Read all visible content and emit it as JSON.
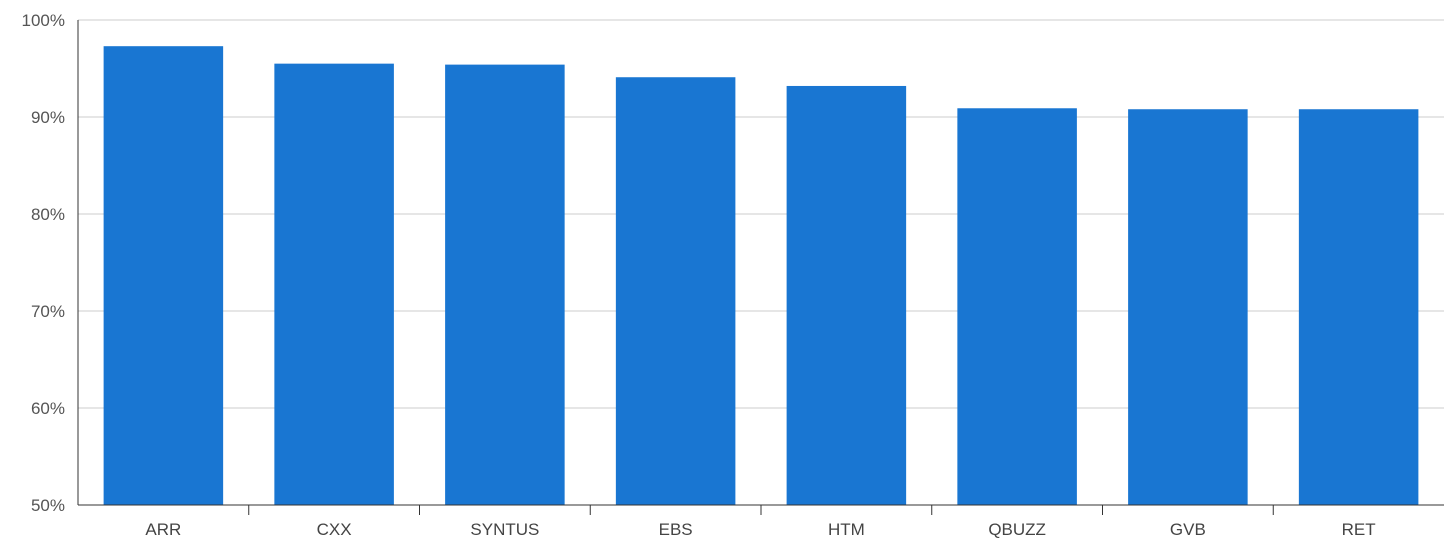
{
  "chart_data": {
    "type": "bar",
    "title": "",
    "xlabel": "",
    "ylabel": "",
    "categories": [
      "ARR",
      "CXX",
      "SYNTUS",
      "EBS",
      "HTM",
      "QBUZZ",
      "GVB",
      "RET"
    ],
    "values": [
      97.3,
      95.5,
      95.4,
      94.1,
      93.2,
      90.9,
      90.8,
      90.8
    ],
    "ylim": [
      50,
      100
    ],
    "yticks": [
      50,
      60,
      70,
      80,
      90,
      100
    ],
    "ytick_labels": [
      "50%",
      "60%",
      "70%",
      "80%",
      "90%",
      "100%"
    ],
    "grid": true,
    "legend": "none",
    "bar_color": "#1976d2",
    "grid_color": "#cccccc",
    "axis_color": "#333333"
  }
}
